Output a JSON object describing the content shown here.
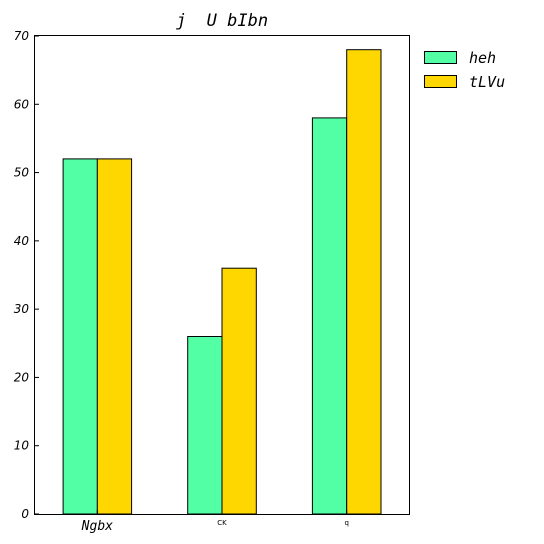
{
  "chart_data": {
    "type": "bar",
    "title": "j  U bIbn",
    "xlabel": "",
    "ylabel": "",
    "categories": [
      "Ngbx",
      "CK",
      "q"
    ],
    "series": [
      {
        "name": "heh",
        "values": [
          52,
          26,
          58
        ],
        "color": "#52ffa5"
      },
      {
        "name": "tLVu",
        "values": [
          52,
          36,
          68
        ],
        "color": "#ffd700"
      }
    ],
    "ylim": [
      0,
      70
    ],
    "yticks": [
      "0",
      "10",
      "20",
      "30",
      "40",
      "50",
      "60",
      "70"
    ],
    "grid": false,
    "legend_position": "outside-top-right"
  }
}
